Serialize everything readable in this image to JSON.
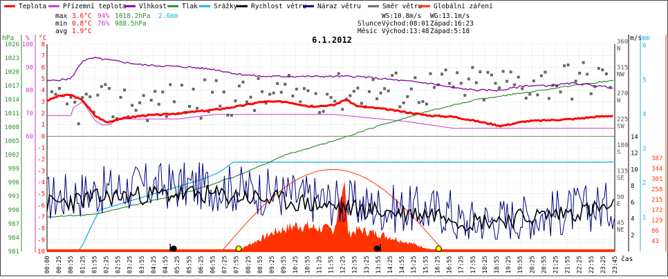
{
  "chart_data": {
    "type": "line",
    "title": "6.1.2012",
    "legend": [
      {
        "name": "Teplota",
        "color": "#ff0000"
      },
      {
        "name": "Přízemní teplota",
        "color": "#cc33cc"
      },
      {
        "name": "Vlhkost",
        "color": "#8000a0"
      },
      {
        "name": "Tlak",
        "color": "#2e8b2e"
      },
      {
        "name": "Srážky",
        "color": "#19b3d9"
      },
      {
        "name": "Rychlost větru",
        "color": "#000000"
      },
      {
        "name": "Náraz větru",
        "color": "#000080"
      },
      {
        "name": "Směr větru",
        "color": "#666666"
      },
      {
        "name": "Globální záření",
        "color": "#ff3300"
      }
    ],
    "stats": {
      "max": {
        "label": "max",
        "temp": "3.6°C",
        "hum": "94%",
        "press": "1018.2hPa",
        "rain": "2.6mm"
      },
      "min": {
        "label": "min",
        "temp": "0.8°C",
        "hum": "76%",
        "press": "988.5hPa"
      },
      "avg": {
        "label": "avg",
        "temp": "1.9°C"
      }
    },
    "wind_info": {
      "ws": "WS:10.8m/s",
      "wg": "WG:13.1m/s"
    },
    "sun_info": {
      "label": "Slunce",
      "rise": "Východ:08:01",
      "set": "Západ:16:23"
    },
    "moon_info": {
      "label": "Měsíc",
      "rise": "Východ:13:48",
      "set": "Západ:5:18"
    },
    "axes": {
      "hpa": {
        "unit": "hPa",
        "ticks": [
          "1026",
          "1023",
          "1020",
          "1017",
          "1014",
          "1011",
          "1008",
          "1005",
          "1002",
          "999",
          "996",
          "993",
          "990",
          "987",
          "984",
          "981"
        ],
        "color": "#2e8b2e"
      },
      "pct": {
        "unit": "%",
        "ticks": [
          "100",
          "90",
          "80",
          "70",
          "60"
        ],
        "color": "#cc33cc"
      },
      "degc": {
        "unit": "°C",
        "ticks": [
          "8",
          "7",
          "6",
          "5",
          "4",
          "3",
          "2",
          "1",
          "0",
          "-1",
          "-2",
          "-3",
          "-4",
          "-5",
          "-6",
          "-7",
          "-8",
          "-9",
          "-10"
        ],
        "color": "#ff0000"
      },
      "dir": {
        "ticks": [
          {
            "v": "360",
            "d": "N"
          },
          {
            "v": "315",
            "d": "NW"
          },
          {
            "v": "270",
            "d": "W"
          },
          {
            "v": "225",
            "d": "SW"
          },
          {
            "v": "180",
            "d": "S"
          },
          {
            "v": "135",
            "d": "SE"
          },
          {
            "v": "90",
            "d": "E"
          },
          {
            "v": "45",
            "d": "NE"
          }
        ]
      },
      "ms": {
        "unit": "m/s",
        "ticks": [
          "14",
          "12",
          "10",
          "8",
          "6",
          "4",
          "2"
        ]
      },
      "mm": {
        "unit": "mm",
        "ticks": [
          "6",
          "5",
          "4",
          "3",
          "2",
          "1"
        ],
        "color": "#19b3d9"
      },
      "wm2": {
        "ticks": [
          "387",
          "344",
          "301",
          "258",
          "215",
          "172",
          "129",
          "86",
          "43"
        ],
        "color": "#ff3300"
      },
      "x_label": "čas",
      "x_ticks": [
        "00:00",
        "00:25",
        "00:55",
        "01:25",
        "01:55",
        "02:25",
        "02:55",
        "03:25",
        "03:55",
        "04:25",
        "04:55",
        "05:25",
        "05:55",
        "06:25",
        "06:55",
        "07:25",
        "07:55",
        "08:25",
        "08:55",
        "09:25",
        "09:55",
        "10:25",
        "10:55",
        "11:25",
        "11:55",
        "12:25",
        "12:55",
        "13:25",
        "13:55",
        "14:25",
        "14:55",
        "15:25",
        "15:55",
        "16:25",
        "16:55",
        "17:25",
        "17:55",
        "18:25",
        "18:55",
        "19:25",
        "19:55",
        "20:25",
        "20:55",
        "21:25",
        "21:55",
        "22:25",
        "22:55",
        "23:25",
        "23:45"
      ]
    },
    "x_range": [
      "00:00",
      "23:45"
    ],
    "series": [
      {
        "name": "Teplota",
        "x_hours": [
          0,
          0.5,
          1,
          1.5,
          2,
          2.5,
          3,
          4,
          5,
          6,
          7,
          8,
          9,
          10,
          11,
          12,
          12.5,
          13,
          14,
          15,
          16,
          17,
          18,
          19,
          20,
          21,
          22,
          23,
          23.75
        ],
        "values": [
          3.1,
          3.5,
          3.6,
          3.1,
          1.8,
          1.2,
          1.5,
          1.8,
          1.9,
          2.1,
          2.3,
          2.6,
          3.0,
          3.0,
          2.6,
          2.7,
          3.2,
          2.6,
          2.4,
          2.1,
          1.8,
          1.7,
          1.3,
          0.9,
          1.3,
          1.4,
          1.5,
          1.7,
          1.8
        ]
      },
      {
        "name": "Vlhkost",
        "x_hours": [
          0,
          1,
          1.5,
          2,
          4,
          6,
          7,
          8,
          9,
          10,
          11,
          12,
          13,
          14,
          15,
          16,
          17,
          18,
          19,
          20,
          21,
          22,
          23,
          23.75
        ],
        "values": [
          84,
          85,
          93,
          94,
          91,
          90,
          89,
          87,
          86,
          86,
          86,
          86,
          86,
          85,
          84,
          83,
          81,
          80,
          80,
          82,
          82,
          83,
          82,
          81
        ]
      },
      {
        "name": "Tlak",
        "x_hours": [
          0,
          2,
          4,
          6,
          8,
          10,
          12,
          14,
          16,
          18,
          20,
          22,
          23.75
        ],
        "values": [
          988.5,
          989.0,
          991.5,
          994.0,
          997.5,
          1002.0,
          1005.0,
          1008.5,
          1011.5,
          1014.0,
          1015.5,
          1017.0,
          1018.2
        ]
      },
      {
        "name": "Srážky",
        "x_hours": [
          0,
          1.3,
          1.5,
          1.9,
          2.2,
          6.5,
          7.2,
          7.8,
          23.75
        ],
        "values": [
          0,
          0,
          0.2,
          0.8,
          1.2,
          2.1,
          2.3,
          2.6,
          2.6
        ]
      },
      {
        "name": "Globální záření",
        "x_hours": [
          7.9,
          8.5,
          9.5,
          10.5,
          11,
          12,
          12.45,
          12.6,
          13,
          14,
          15,
          16,
          16.3
        ],
        "values": [
          0,
          30,
          80,
          110,
          100,
          90,
          290,
          70,
          90,
          70,
          40,
          10,
          0
        ]
      }
    ]
  }
}
